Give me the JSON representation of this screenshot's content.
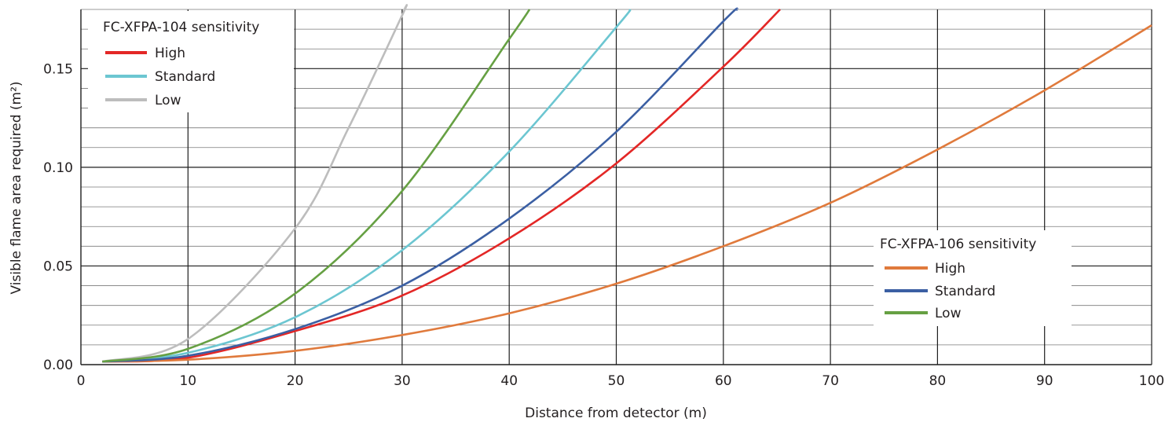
{
  "chart_data": {
    "type": "line",
    "xlabel": "Distance from detector (m)",
    "ylabel": "Visible flame area required (m²)",
    "xlim": [
      0,
      100
    ],
    "ylim": [
      0,
      0.18
    ],
    "x_ticks": [
      "0",
      "10",
      "20",
      "30",
      "40",
      "50",
      "60",
      "70",
      "80",
      "90",
      "100"
    ],
    "y_ticks": [
      "0.00",
      "0.05",
      "0.10",
      "0.15"
    ],
    "y_tick_values": [
      0,
      0.05,
      0.1,
      0.15
    ],
    "grid": true,
    "minor_grid_y_step": 0.01,
    "legends": [
      {
        "title": "FC-XFPA-104 sensitivity",
        "placement": "top-left",
        "entries": [
          {
            "label": "High",
            "color": "#e32726"
          },
          {
            "label": "Standard",
            "color": "#6cc6d1"
          },
          {
            "label": "Low",
            "color": "#bdbdbd"
          }
        ]
      },
      {
        "title": "FC-XFPA-106 sensitivity",
        "placement": "bottom-right",
        "entries": [
          {
            "label": "High",
            "color": "#e07a3c"
          },
          {
            "label": "Standard",
            "color": "#3b5fa3"
          },
          {
            "label": "Low",
            "color": "#66a043"
          }
        ]
      }
    ],
    "series": [
      {
        "name": "FC-XFPA-104 High",
        "color": "#e32726",
        "x": [
          2,
          10,
          20,
          30,
          40,
          50,
          60,
          65.3
        ],
        "y": [
          0.0015,
          0.0035,
          0.017,
          0.035,
          0.064,
          0.102,
          0.151,
          0.18
        ]
      },
      {
        "name": "FC-XFPA-104 Standard",
        "color": "#6cc6d1",
        "x": [
          2,
          10,
          20,
          30,
          40,
          50,
          51.3
        ],
        "y": [
          0.0015,
          0.006,
          0.024,
          0.058,
          0.108,
          0.171,
          0.18
        ]
      },
      {
        "name": "FC-XFPA-104 Low",
        "color": "#bdbdbd",
        "x": [
          2,
          10,
          20,
          25,
          30,
          30.2
        ],
        "y": [
          0.0015,
          0.013,
          0.069,
          0.12,
          0.177,
          0.18
        ]
      },
      {
        "name": "FC-XFPA-106 High",
        "color": "#e07a3c",
        "x": [
          2,
          10,
          20,
          30,
          40,
          50,
          60,
          70,
          80,
          90,
          100
        ],
        "y": [
          0.0015,
          0.0025,
          0.007,
          0.015,
          0.026,
          0.041,
          0.06,
          0.082,
          0.109,
          0.139,
          0.172
        ]
      },
      {
        "name": "FC-XFPA-106 Standard",
        "color": "#3b5fa3",
        "x": [
          2,
          10,
          20,
          30,
          40,
          50,
          60,
          61.3
        ],
        "y": [
          0.0015,
          0.0045,
          0.018,
          0.04,
          0.074,
          0.118,
          0.174,
          0.18
        ]
      },
      {
        "name": "FC-XFPA-106 Low",
        "color": "#66a043",
        "x": [
          2,
          10,
          20,
          30,
          40,
          41.9
        ],
        "y": [
          0.0015,
          0.008,
          0.036,
          0.088,
          0.165,
          0.18
        ]
      }
    ]
  }
}
